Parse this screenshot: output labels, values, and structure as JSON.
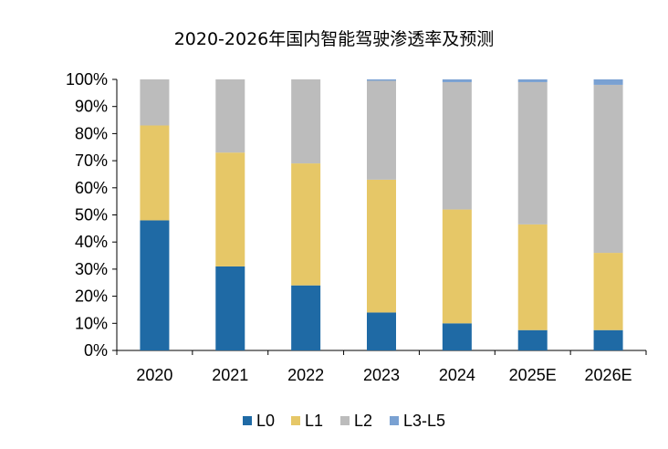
{
  "chart_data": {
    "type": "bar",
    "stacked": true,
    "title": "2020-2026年国内智能驾驶渗透率及预测",
    "categories": [
      "2020",
      "2021",
      "2022",
      "2023",
      "2024",
      "2025E",
      "2026E"
    ],
    "series": [
      {
        "name": "L0",
        "values": [
          48,
          31,
          24,
          14,
          10,
          7.5,
          7.5
        ]
      },
      {
        "name": "L1",
        "values": [
          35,
          42,
          45,
          49,
          42,
          39,
          28.5
        ]
      },
      {
        "name": "L2",
        "values": [
          17,
          27,
          31,
          36.5,
          47,
          52.5,
          62
        ]
      },
      {
        "name": "L3-L5",
        "values": [
          0,
          0,
          0,
          0.5,
          1,
          1,
          2
        ]
      }
    ],
    "colors": [
      "#1f6aa5",
      "#e6c767",
      "#bcbcbc",
      "#7aa1d2"
    ],
    "ylim": [
      0,
      100
    ],
    "yticks": [
      "0%",
      "10%",
      "20%",
      "30%",
      "40%",
      "50%",
      "60%",
      "70%",
      "80%",
      "90%",
      "100%"
    ],
    "legend_position": "bottom",
    "grid": false
  }
}
